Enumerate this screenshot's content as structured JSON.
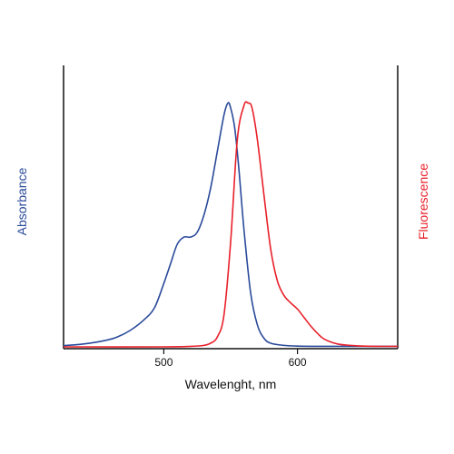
{
  "chart_data": {
    "type": "line",
    "xlabel": "Wavelenght, nm",
    "ylabel_left": "Absorbance",
    "ylabel_right": "Fluorescence",
    "xlim": [
      425,
      675
    ],
    "ylim": [
      0,
      1.05
    ],
    "x_ticks": [
      500,
      600
    ],
    "x_tick_labels": [
      "500",
      "600"
    ],
    "y_ticks_shown": false,
    "grid": false,
    "legend": "none",
    "series": [
      {
        "key": "absorbance",
        "color": "#2a4a9a",
        "x": [
          425,
          440,
          455,
          465,
          475,
          485,
          493,
          500,
          505,
          510,
          515,
          520,
          525,
          530,
          535,
          540,
          545,
          548,
          550,
          553,
          556,
          560,
          565,
          570,
          575,
          580,
          590,
          600,
          620,
          650,
          675
        ],
        "y": [
          0.005,
          0.012,
          0.025,
          0.04,
          0.068,
          0.11,
          0.16,
          0.26,
          0.34,
          0.42,
          0.45,
          0.45,
          0.47,
          0.54,
          0.65,
          0.8,
          0.95,
          1.0,
          0.98,
          0.9,
          0.74,
          0.48,
          0.22,
          0.09,
          0.035,
          0.015,
          0.006,
          0.003,
          0.002,
          0.002,
          0.002
        ]
      },
      {
        "key": "fluorescence",
        "color": "#e8202a",
        "x": [
          425,
          500,
          520,
          530,
          535,
          540,
          545,
          550,
          555,
          560,
          563,
          566,
          570,
          575,
          580,
          585,
          590,
          595,
          600,
          605,
          610,
          615,
          620,
          630,
          645,
          660,
          675
        ],
        "y": [
          0.0,
          0.0,
          0.002,
          0.006,
          0.015,
          0.04,
          0.13,
          0.43,
          0.85,
          0.99,
          1.0,
          0.98,
          0.85,
          0.62,
          0.4,
          0.27,
          0.21,
          0.18,
          0.155,
          0.12,
          0.085,
          0.055,
          0.032,
          0.012,
          0.004,
          0.002,
          0.002
        ]
      }
    ]
  }
}
